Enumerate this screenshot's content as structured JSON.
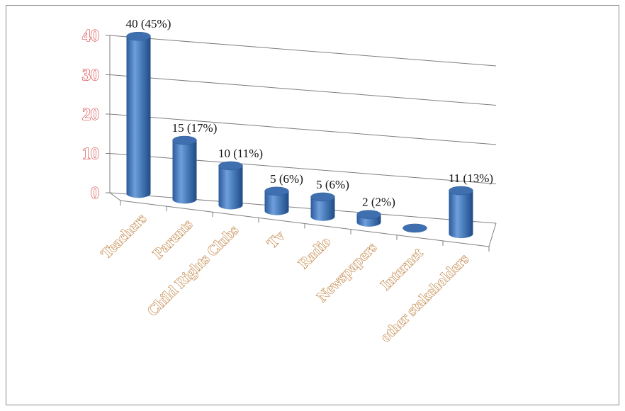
{
  "chart_data": {
    "type": "bar",
    "categories": [
      "Teachers",
      "Parents",
      "Child Rights Clubs",
      "Tv",
      "Radio",
      "Newspapers",
      "Internet",
      "other stakeholders"
    ],
    "values": [
      40,
      15,
      10,
      5,
      5,
      2,
      0,
      11
    ],
    "data_labels": [
      "40 (45%)",
      "15 (17%)",
      "10 (11%)",
      "5 (6%)",
      "5 (6%)",
      "2 (2%)",
      "",
      "11 (13%)"
    ],
    "y_ticks": [
      "0",
      "10",
      "20",
      "30",
      "40"
    ],
    "ylim": [
      0,
      40
    ],
    "grid": true,
    "style": "3d-cylinder",
    "colors": {
      "bar": "#4a7ebb",
      "bar_dark": "#1f4f8f",
      "ytick_outline": "#d02020",
      "xtick_outline": "#b0600c"
    }
  }
}
